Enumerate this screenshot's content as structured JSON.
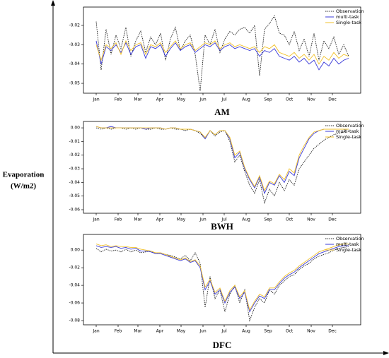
{
  "y_axis_label": [
    "Evaporation",
    "(W/m2)"
  ],
  "chart_data": [
    {
      "type": "line",
      "title": "AM",
      "legend": "upper right",
      "x": [
        1,
        8,
        15,
        22,
        29,
        36,
        43,
        50,
        57,
        64,
        71,
        78,
        85,
        92,
        99,
        106,
        113,
        120,
        127,
        134,
        141,
        148,
        155,
        162,
        169,
        176,
        183,
        190,
        197,
        204,
        211,
        218,
        225,
        232,
        239,
        246,
        253,
        260,
        267,
        274,
        281,
        288,
        295,
        302,
        309,
        316,
        323,
        330,
        337,
        344,
        351,
        358
      ],
      "xlim": [
        -17,
        375
      ],
      "xticks": [
        {
          "value": 1,
          "label": "Jan"
        },
        {
          "value": 32,
          "label": "Feb"
        },
        {
          "value": 60,
          "label": "Mar"
        },
        {
          "value": 91,
          "label": "Apr"
        },
        {
          "value": 121,
          "label": "May"
        },
        {
          "value": 152,
          "label": "Jun"
        },
        {
          "value": 182,
          "label": "Jul"
        },
        {
          "value": 213,
          "label": "Aug"
        },
        {
          "value": 244,
          "label": "Sep"
        },
        {
          "value": 274,
          "label": "Oct"
        },
        {
          "value": 305,
          "label": "Nov"
        },
        {
          "value": 335,
          "label": "Dec"
        }
      ],
      "ylim": [
        -0.0551,
        -0.0105
      ],
      "yticks": [
        -0.05,
        -0.04,
        -0.03,
        -0.02
      ],
      "series": [
        {
          "name": "Observation",
          "color": "#222222",
          "linestyle": "dotted",
          "values": [
            -0.018,
            -0.043,
            -0.022,
            -0.035,
            -0.025,
            -0.032,
            -0.021,
            -0.036,
            -0.028,
            -0.023,
            -0.034,
            -0.026,
            -0.03,
            -0.024,
            -0.038,
            -0.027,
            -0.021,
            -0.033,
            -0.028,
            -0.025,
            -0.035,
            -0.054,
            -0.025,
            -0.03,
            -0.022,
            -0.034,
            -0.027,
            -0.023,
            -0.025,
            -0.022,
            -0.021,
            -0.024,
            -0.02,
            -0.046,
            -0.022,
            -0.019,
            -0.015,
            -0.024,
            -0.025,
            -0.03,
            -0.023,
            -0.033,
            -0.027,
            -0.036,
            -0.024,
            -0.038,
            -0.028,
            -0.032,
            -0.026,
            -0.035,
            -0.03,
            -0.036
          ]
        },
        {
          "name": "multi-task",
          "color": "#3a3ad8",
          "linestyle": "solid",
          "values": [
            -0.028,
            -0.04,
            -0.031,
            -0.033,
            -0.03,
            -0.034,
            -0.029,
            -0.035,
            -0.031,
            -0.03,
            -0.037,
            -0.031,
            -0.032,
            -0.03,
            -0.036,
            -0.032,
            -0.029,
            -0.033,
            -0.031,
            -0.03,
            -0.034,
            -0.032,
            -0.03,
            -0.031,
            -0.029,
            -0.033,
            -0.031,
            -0.03,
            -0.032,
            -0.031,
            -0.032,
            -0.033,
            -0.032,
            -0.036,
            -0.033,
            -0.034,
            -0.032,
            -0.036,
            -0.037,
            -0.038,
            -0.036,
            -0.039,
            -0.037,
            -0.04,
            -0.038,
            -0.043,
            -0.039,
            -0.041,
            -0.037,
            -0.04,
            -0.038,
            -0.037
          ]
        },
        {
          "name": "Single-task",
          "color": "#f2c22a",
          "linestyle": "solid",
          "values": [
            -0.03,
            -0.038,
            -0.03,
            -0.032,
            -0.029,
            -0.035,
            -0.028,
            -0.033,
            -0.03,
            -0.029,
            -0.035,
            -0.03,
            -0.031,
            -0.029,
            -0.034,
            -0.031,
            -0.028,
            -0.032,
            -0.03,
            -0.029,
            -0.033,
            -0.031,
            -0.029,
            -0.03,
            -0.028,
            -0.032,
            -0.03,
            -0.029,
            -0.031,
            -0.03,
            -0.031,
            -0.032,
            -0.031,
            -0.034,
            -0.031,
            -0.032,
            -0.03,
            -0.034,
            -0.035,
            -0.036,
            -0.034,
            -0.037,
            -0.035,
            -0.038,
            -0.035,
            -0.04,
            -0.036,
            -0.038,
            -0.034,
            -0.037,
            -0.035,
            -0.036
          ]
        }
      ]
    },
    {
      "type": "line",
      "title": "BWH",
      "legend": "upper right",
      "x": [
        1,
        8,
        15,
        22,
        29,
        36,
        43,
        50,
        57,
        64,
        71,
        78,
        85,
        92,
        99,
        106,
        113,
        120,
        127,
        134,
        141,
        148,
        155,
        162,
        169,
        176,
        183,
        190,
        197,
        204,
        211,
        218,
        225,
        232,
        239,
        246,
        253,
        260,
        267,
        274,
        281,
        288,
        295,
        302,
        309,
        316,
        323,
        330,
        337,
        344,
        351,
        358
      ],
      "xlim": [
        -17,
        375
      ],
      "xticks": [
        {
          "value": 1,
          "label": "Jan"
        },
        {
          "value": 32,
          "label": "Feb"
        },
        {
          "value": 60,
          "label": "Mar"
        },
        {
          "value": 91,
          "label": "Apr"
        },
        {
          "value": 121,
          "label": "May"
        },
        {
          "value": 152,
          "label": "Jun"
        },
        {
          "value": 182,
          "label": "Jul"
        },
        {
          "value": 213,
          "label": "Aug"
        },
        {
          "value": 244,
          "label": "Sep"
        },
        {
          "value": 274,
          "label": "Oct"
        },
        {
          "value": 305,
          "label": "Nov"
        },
        {
          "value": 335,
          "label": "Dec"
        }
      ],
      "ylim": [
        -0.0626,
        0.0047
      ],
      "yticks": [
        -0.06,
        -0.05,
        -0.04,
        -0.03,
        -0.02,
        -0.01,
        {
          "value": 0,
          "label": "0.00"
        }
      ],
      "series": [
        {
          "name": "Observation",
          "color": "#222222",
          "linestyle": "dotted",
          "values": [
            0.0,
            -0.001,
            0.0,
            -0.001,
            0.0,
            0.0,
            -0.001,
            0.0,
            -0.001,
            0.0,
            -0.001,
            -0.001,
            0.0,
            -0.001,
            -0.001,
            0.0,
            -0.001,
            -0.001,
            -0.002,
            -0.001,
            -0.002,
            -0.004,
            -0.008,
            -0.002,
            -0.006,
            -0.003,
            -0.002,
            -0.01,
            -0.025,
            -0.02,
            -0.032,
            -0.042,
            -0.048,
            -0.038,
            -0.055,
            -0.045,
            -0.05,
            -0.04,
            -0.046,
            -0.038,
            -0.042,
            -0.03,
            -0.025,
            -0.02,
            -0.015,
            -0.012,
            -0.009,
            -0.007,
            -0.005,
            -0.004,
            -0.003,
            -0.002
          ]
        },
        {
          "name": "multi-task",
          "color": "#3a3ad8",
          "linestyle": "solid",
          "values": [
            0.001,
            0.0,
            0.0,
            0.001,
            0.0,
            0.0,
            0.0,
            0.0,
            0.0,
            0.0,
            -0.001,
            0.0,
            0.0,
            0.0,
            -0.001,
            0.0,
            0.0,
            -0.001,
            -0.001,
            -0.001,
            -0.002,
            -0.003,
            -0.008,
            -0.002,
            -0.005,
            -0.002,
            -0.002,
            -0.008,
            -0.022,
            -0.018,
            -0.03,
            -0.038,
            -0.044,
            -0.036,
            -0.048,
            -0.04,
            -0.042,
            -0.035,
            -0.04,
            -0.032,
            -0.035,
            -0.022,
            -0.015,
            -0.008,
            -0.004,
            -0.002,
            -0.001,
            -0.001,
            -0.001,
            -0.001,
            -0.001,
            -0.001
          ]
        },
        {
          "name": "Single-task",
          "color": "#f2c22a",
          "linestyle": "solid",
          "values": [
            0.001,
            0.0,
            0.0,
            0.0,
            0.0,
            0.0,
            0.0,
            0.0,
            0.0,
            0.0,
            0.0,
            0.0,
            0.0,
            0.0,
            -0.001,
            0.0,
            0.0,
            -0.001,
            -0.001,
            -0.001,
            -0.002,
            -0.003,
            -0.007,
            -0.002,
            -0.005,
            -0.002,
            -0.002,
            -0.007,
            -0.02,
            -0.017,
            -0.029,
            -0.037,
            -0.043,
            -0.035,
            -0.046,
            -0.039,
            -0.041,
            -0.034,
            -0.038,
            -0.03,
            -0.033,
            -0.02,
            -0.013,
            -0.007,
            -0.003,
            -0.002,
            -0.001,
            -0.001,
            -0.001,
            -0.001,
            -0.001,
            -0.001
          ]
        }
      ]
    },
    {
      "type": "line",
      "title": "DFC",
      "legend": "upper right",
      "x": [
        1,
        8,
        15,
        22,
        29,
        36,
        43,
        50,
        57,
        64,
        71,
        78,
        85,
        92,
        99,
        106,
        113,
        120,
        127,
        134,
        141,
        148,
        155,
        162,
        169,
        176,
        183,
        190,
        197,
        204,
        211,
        218,
        225,
        232,
        239,
        246,
        253,
        260,
        267,
        274,
        281,
        288,
        295,
        302,
        309,
        316,
        323,
        330,
        337,
        344,
        351,
        358
      ],
      "xlim": [
        -17,
        375
      ],
      "xticks": [
        {
          "value": 1,
          "label": "Jan"
        },
        {
          "value": 32,
          "label": "Feb"
        },
        {
          "value": 60,
          "label": "Mar"
        },
        {
          "value": 91,
          "label": "Apr"
        },
        {
          "value": 121,
          "label": "May"
        },
        {
          "value": 152,
          "label": "Jun"
        },
        {
          "value": 182,
          "label": "Jul"
        },
        {
          "value": 213,
          "label": "Aug"
        },
        {
          "value": 244,
          "label": "Sep"
        },
        {
          "value": 274,
          "label": "Oct"
        },
        {
          "value": 305,
          "label": "Nov"
        },
        {
          "value": 335,
          "label": "Dec"
        }
      ],
      "ylim": [
        -0.0848,
        0.0178
      ],
      "yticks": [
        -0.08,
        -0.06,
        -0.04,
        -0.02,
        {
          "value": 0,
          "label": "0.00"
        }
      ],
      "series": [
        {
          "name": "Observation",
          "color": "#222222",
          "linestyle": "dotted",
          "values": [
            0.002,
            -0.002,
            0.001,
            -0.001,
            0.0,
            -0.002,
            0.001,
            -0.002,
            0.0,
            -0.003,
            -0.002,
            -0.001,
            -0.004,
            -0.003,
            -0.005,
            -0.006,
            -0.008,
            -0.01,
            -0.006,
            -0.012,
            -0.003,
            -0.015,
            -0.065,
            -0.03,
            -0.055,
            -0.045,
            -0.07,
            -0.05,
            -0.04,
            -0.06,
            -0.045,
            -0.08,
            -0.065,
            -0.055,
            -0.06,
            -0.045,
            -0.05,
            -0.04,
            -0.035,
            -0.03,
            -0.028,
            -0.022,
            -0.018,
            -0.015,
            -0.01,
            -0.007,
            -0.005,
            -0.003,
            0.0,
            0.002,
            0.003,
            0.004
          ]
        },
        {
          "name": "multi-task",
          "color": "#3a3ad8",
          "linestyle": "solid",
          "values": [
            0.005,
            0.003,
            0.004,
            0.003,
            0.004,
            0.002,
            0.003,
            0.001,
            0.002,
            -0.001,
            -0.001,
            -0.002,
            -0.004,
            -0.004,
            -0.006,
            -0.008,
            -0.01,
            -0.012,
            -0.01,
            -0.014,
            -0.012,
            -0.02,
            -0.045,
            -0.035,
            -0.05,
            -0.045,
            -0.06,
            -0.048,
            -0.042,
            -0.055,
            -0.048,
            -0.07,
            -0.06,
            -0.052,
            -0.055,
            -0.045,
            -0.045,
            -0.038,
            -0.032,
            -0.028,
            -0.025,
            -0.02,
            -0.016,
            -0.012,
            -0.008,
            -0.004,
            -0.002,
            0.0,
            0.002,
            0.004,
            0.005,
            0.005
          ]
        },
        {
          "name": "Single-task",
          "color": "#f2c22a",
          "linestyle": "solid",
          "values": [
            0.007,
            0.005,
            0.006,
            0.004,
            0.005,
            0.004,
            0.004,
            0.003,
            0.003,
            0.001,
            0.0,
            -0.001,
            -0.003,
            -0.003,
            -0.005,
            -0.007,
            -0.009,
            -0.011,
            -0.009,
            -0.013,
            -0.011,
            -0.018,
            -0.042,
            -0.033,
            -0.048,
            -0.043,
            -0.058,
            -0.046,
            -0.04,
            -0.053,
            -0.046,
            -0.068,
            -0.058,
            -0.05,
            -0.053,
            -0.043,
            -0.043,
            -0.036,
            -0.03,
            -0.026,
            -0.023,
            -0.018,
            -0.014,
            -0.01,
            -0.006,
            -0.002,
            0.0,
            0.002,
            0.004,
            0.006,
            0.007,
            0.007
          ]
        }
      ]
    }
  ]
}
